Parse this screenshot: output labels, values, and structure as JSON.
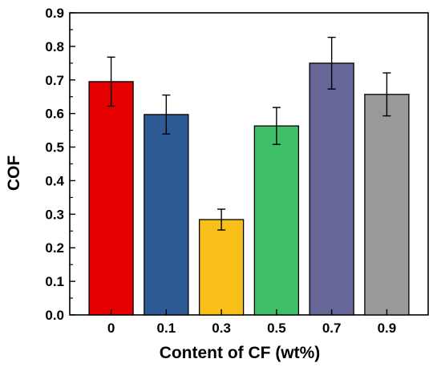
{
  "chart_data": {
    "type": "bar",
    "xlabel": "Content of CF (wt%)",
    "ylabel": "COF",
    "ylim": [
      0,
      0.9
    ],
    "yticks": [
      0.0,
      0.1,
      0.2,
      0.3,
      0.4,
      0.5,
      0.6,
      0.7,
      0.8,
      0.9
    ],
    "ytick_labels": [
      "0.0",
      "0.1",
      "0.2",
      "0.3",
      "0.4",
      "0.5",
      "0.6",
      "0.7",
      "0.8",
      "0.9"
    ],
    "categories": [
      "0",
      "0.1",
      "0.3",
      "0.5",
      "0.7",
      "0.9"
    ],
    "values": [
      0.695,
      0.597,
      0.284,
      0.563,
      0.75,
      0.657
    ],
    "error": [
      0.073,
      0.058,
      0.031,
      0.055,
      0.077,
      0.064
    ],
    "colors": [
      "#e50000",
      "#2e5b96",
      "#f7bf17",
      "#3ebf68",
      "#666699",
      "#999999"
    ],
    "grid": false,
    "legend": "none"
  }
}
